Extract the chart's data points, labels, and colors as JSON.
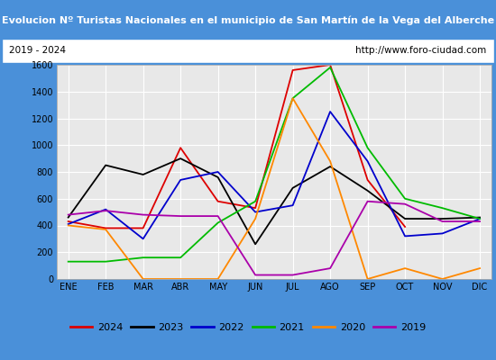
{
  "title": "Evolucion Nº Turistas Nacionales en el municipio de San Martín de la Vega del Alberche",
  "subtitle_left": "2019 - 2024",
  "subtitle_right": "http://www.foro-ciudad.com",
  "months": [
    "ENE",
    "FEB",
    "MAR",
    "ABR",
    "MAY",
    "JUN",
    "JUL",
    "AGO",
    "SEP",
    "OCT",
    "NOV",
    "DIC"
  ],
  "ylim": [
    0,
    1600
  ],
  "yticks": [
    0,
    200,
    400,
    600,
    800,
    1000,
    1200,
    1400,
    1600
  ],
  "series": {
    "2024": {
      "color": "#dd0000",
      "data": [
        430,
        380,
        380,
        980,
        580,
        530,
        1560,
        1600,
        740,
        390,
        null,
        null
      ]
    },
    "2023": {
      "color": "#000000",
      "data": [
        460,
        850,
        780,
        900,
        760,
        260,
        680,
        840,
        660,
        450,
        450,
        460
      ]
    },
    "2022": {
      "color": "#0000cc",
      "data": [
        410,
        520,
        300,
        740,
        800,
        500,
        550,
        1250,
        880,
        320,
        340,
        450
      ]
    },
    "2021": {
      "color": "#00bb00",
      "data": [
        130,
        130,
        160,
        160,
        420,
        580,
        1350,
        1580,
        980,
        600,
        530,
        450
      ]
    },
    "2020": {
      "color": "#ff8800",
      "data": [
        400,
        370,
        0,
        0,
        0,
        450,
        1350,
        880,
        0,
        80,
        0,
        80
      ]
    },
    "2019": {
      "color": "#aa00aa",
      "data": [
        480,
        510,
        480,
        470,
        470,
        30,
        30,
        80,
        580,
        560,
        430,
        430
      ]
    }
  },
  "title_bg": "#4a90d9",
  "title_color": "#ffffff",
  "subtitle_bg": "#ffffff",
  "plot_bg": "#e8e8e8",
  "grid_color": "#ffffff",
  "border_color": "#4a90d9",
  "fig_width": 5.5,
  "fig_height": 4.0,
  "dpi": 100
}
